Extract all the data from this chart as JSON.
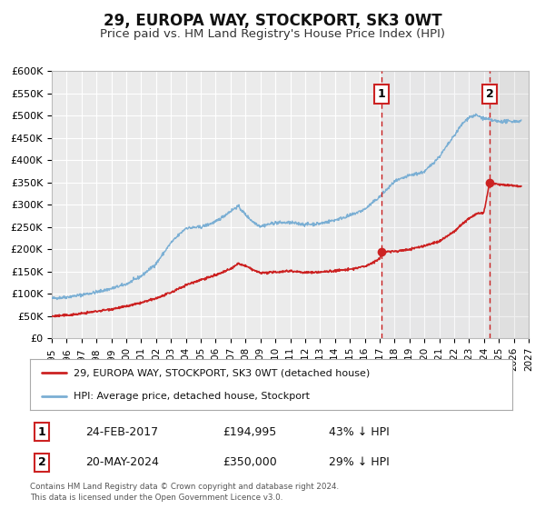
{
  "title": "29, EUROPA WAY, STOCKPORT, SK3 0WT",
  "subtitle": "Price paid vs. HM Land Registry's House Price Index (HPI)",
  "title_fontsize": 12,
  "subtitle_fontsize": 9.5,
  "ylim": [
    0,
    600000
  ],
  "yticks": [
    0,
    50000,
    100000,
    150000,
    200000,
    250000,
    300000,
    350000,
    400000,
    450000,
    500000,
    550000,
    600000
  ],
  "xlim_start": 1995.0,
  "xlim_end": 2027.0,
  "background_color": "#ffffff",
  "plot_bg_color": "#ebebeb",
  "grid_color": "#ffffff",
  "hpi_line_color": "#7bafd4",
  "price_line_color": "#cc2222",
  "vline_color": "#cc2222",
  "marker1_x": 2017.12,
  "marker1_y": 194995,
  "marker2_x": 2024.38,
  "marker2_y": 350000,
  "legend_label_red": "29, EUROPA WAY, STOCKPORT, SK3 0WT (detached house)",
  "legend_label_blue": "HPI: Average price, detached house, Stockport",
  "table_row1": [
    "1",
    "24-FEB-2017",
    "£194,995",
    "43% ↓ HPI"
  ],
  "table_row2": [
    "2",
    "20-MAY-2024",
    "£350,000",
    "29% ↓ HPI"
  ],
  "footnote": "Contains HM Land Registry data © Crown copyright and database right 2024.\nThis data is licensed under the Open Government Licence v3.0.",
  "hpi_anchors_x": [
    1995.0,
    1996.0,
    1997.0,
    1998.0,
    1999.0,
    2000.0,
    2001.0,
    2002.0,
    2003.0,
    2004.0,
    2005.0,
    2006.0,
    2007.0,
    2007.5,
    2008.0,
    2008.5,
    2009.0,
    2009.5,
    2010.0,
    2011.0,
    2012.0,
    2013.0,
    2014.0,
    2015.0,
    2016.0,
    2017.0,
    2018.0,
    2019.0,
    2020.0,
    2021.0,
    2022.0,
    2022.5,
    2023.0,
    2023.5,
    2024.0,
    2024.5,
    2025.0,
    2026.5
  ],
  "hpi_anchors_y": [
    90000,
    93000,
    98000,
    104000,
    112000,
    122000,
    140000,
    168000,
    215000,
    248000,
    250000,
    262000,
    286000,
    297000,
    278000,
    262000,
    252000,
    256000,
    260000,
    260000,
    256000,
    258000,
    266000,
    276000,
    290000,
    318000,
    352000,
    366000,
    374000,
    408000,
    455000,
    480000,
    497000,
    501000,
    494000,
    490000,
    487000,
    488000
  ],
  "price_anchors_x": [
    1995.0,
    1996.0,
    1997.0,
    1998.0,
    1999.0,
    2000.0,
    2001.0,
    2002.0,
    2003.0,
    2004.0,
    2005.0,
    2006.0,
    2007.0,
    2007.5,
    2008.0,
    2008.5,
    2009.0,
    2010.0,
    2011.0,
    2012.0,
    2013.0,
    2014.0,
    2015.0,
    2016.0,
    2017.0,
    2017.12,
    2018.0,
    2019.0,
    2020.0,
    2021.0,
    2022.0,
    2022.5,
    2023.0,
    2023.5,
    2024.0,
    2024.38,
    2025.0,
    2026.5
  ],
  "price_anchors_y": [
    50000,
    52000,
    56000,
    61000,
    66000,
    72000,
    80000,
    90000,
    103000,
    120000,
    132000,
    142000,
    156000,
    168000,
    163000,
    154000,
    147000,
    149000,
    152000,
    148000,
    149000,
    152000,
    155000,
    162000,
    178000,
    194995,
    195500,
    200000,
    208000,
    218000,
    240000,
    256000,
    270000,
    280000,
    282000,
    350000,
    346000,
    342000
  ]
}
